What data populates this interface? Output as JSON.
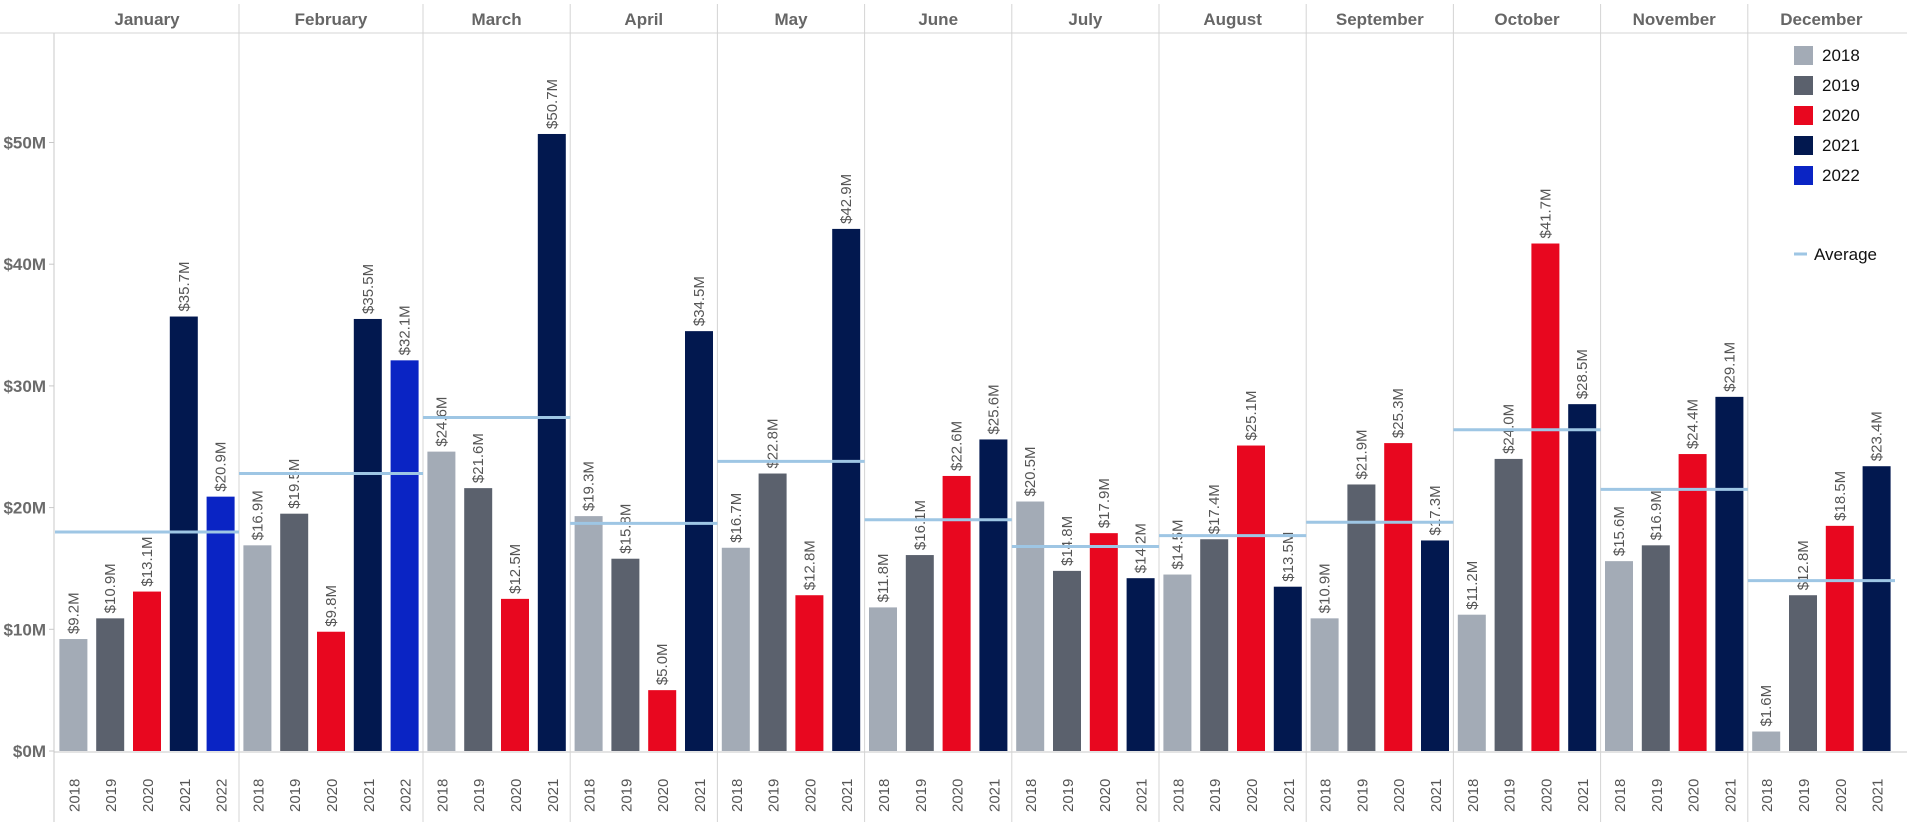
{
  "chart_data": {
    "type": "bar",
    "title": "",
    "xlabel": "",
    "ylabel": "",
    "ylim": [
      0,
      58
    ],
    "y_ticks": [
      {
        "value": 0,
        "label": "$0M"
      },
      {
        "value": 10,
        "label": "$10M"
      },
      {
        "value": 20,
        "label": "$20M"
      },
      {
        "value": 30,
        "label": "$30M"
      },
      {
        "value": 40,
        "label": "$40M"
      },
      {
        "value": 50,
        "label": "$50M"
      }
    ],
    "grid": false,
    "legend_position": "top-right",
    "legend": {
      "average_label": "Average",
      "items": [
        {
          "year": "2018",
          "color": "#a3abb6"
        },
        {
          "year": "2019",
          "color": "#5b616d"
        },
        {
          "year": "2020",
          "color": "#e8071f"
        },
        {
          "year": "2021",
          "color": "#02184f"
        },
        {
          "year": "2022",
          "color": "#0a24c4"
        }
      ]
    },
    "average_line_color": "#9ec6e4",
    "months": [
      {
        "name": "January",
        "average": 18.0,
        "bars": [
          {
            "year": "2018",
            "value": 9.2,
            "label": "$9.2M"
          },
          {
            "year": "2019",
            "value": 10.9,
            "label": "$10.9M"
          },
          {
            "year": "2020",
            "value": 13.1,
            "label": "$13.1M"
          },
          {
            "year": "2021",
            "value": 35.7,
            "label": "$35.7M"
          },
          {
            "year": "2022",
            "value": 20.9,
            "label": "$20.9M"
          }
        ]
      },
      {
        "name": "February",
        "average": 22.8,
        "bars": [
          {
            "year": "2018",
            "value": 16.9,
            "label": "$16.9M"
          },
          {
            "year": "2019",
            "value": 19.5,
            "label": "$19.5M"
          },
          {
            "year": "2020",
            "value": 9.8,
            "label": "$9.8M"
          },
          {
            "year": "2021",
            "value": 35.5,
            "label": "$35.5M"
          },
          {
            "year": "2022",
            "value": 32.1,
            "label": "$32.1M"
          }
        ]
      },
      {
        "name": "March",
        "average": 27.4,
        "bars": [
          {
            "year": "2018",
            "value": 24.6,
            "label": "$24.6M"
          },
          {
            "year": "2019",
            "value": 21.6,
            "label": "$21.6M"
          },
          {
            "year": "2020",
            "value": 12.5,
            "label": "$12.5M"
          },
          {
            "year": "2021",
            "value": 50.7,
            "label": "$50.7M"
          }
        ]
      },
      {
        "name": "April",
        "average": 18.7,
        "bars": [
          {
            "year": "2018",
            "value": 19.3,
            "label": "$19.3M"
          },
          {
            "year": "2019",
            "value": 15.8,
            "label": "$15.8M"
          },
          {
            "year": "2020",
            "value": 5.0,
            "label": "$5.0M"
          },
          {
            "year": "2021",
            "value": 34.5,
            "label": "$34.5M"
          }
        ]
      },
      {
        "name": "May",
        "average": 23.8,
        "bars": [
          {
            "year": "2018",
            "value": 16.7,
            "label": "$16.7M"
          },
          {
            "year": "2019",
            "value": 22.8,
            "label": "$22.8M"
          },
          {
            "year": "2020",
            "value": 12.8,
            "label": "$12.8M"
          },
          {
            "year": "2021",
            "value": 42.9,
            "label": "$42.9M"
          }
        ]
      },
      {
        "name": "June",
        "average": 19.0,
        "bars": [
          {
            "year": "2018",
            "value": 11.8,
            "label": "$11.8M"
          },
          {
            "year": "2019",
            "value": 16.1,
            "label": "$16.1M"
          },
          {
            "year": "2020",
            "value": 22.6,
            "label": "$22.6M"
          },
          {
            "year": "2021",
            "value": 25.6,
            "label": "$25.6M"
          }
        ]
      },
      {
        "name": "July",
        "average": 16.8,
        "bars": [
          {
            "year": "2018",
            "value": 20.5,
            "label": "$20.5M"
          },
          {
            "year": "2019",
            "value": 14.8,
            "label": "$14.8M"
          },
          {
            "year": "2020",
            "value": 17.9,
            "label": "$17.9M"
          },
          {
            "year": "2021",
            "value": 14.2,
            "label": "$14.2M"
          }
        ]
      },
      {
        "name": "August",
        "average": 17.7,
        "bars": [
          {
            "year": "2018",
            "value": 14.5,
            "label": "$14.5M"
          },
          {
            "year": "2019",
            "value": 17.4,
            "label": "$17.4M"
          },
          {
            "year": "2020",
            "value": 25.1,
            "label": "$25.1M"
          },
          {
            "year": "2021",
            "value": 13.5,
            "label": "$13.5M"
          }
        ]
      },
      {
        "name": "September",
        "average": 18.8,
        "bars": [
          {
            "year": "2018",
            "value": 10.9,
            "label": "$10.9M"
          },
          {
            "year": "2019",
            "value": 21.9,
            "label": "$21.9M"
          },
          {
            "year": "2020",
            "value": 25.3,
            "label": "$25.3M"
          },
          {
            "year": "2021",
            "value": 17.3,
            "label": "$17.3M"
          }
        ]
      },
      {
        "name": "October",
        "average": 26.4,
        "bars": [
          {
            "year": "2018",
            "value": 11.2,
            "label": "$11.2M"
          },
          {
            "year": "2019",
            "value": 24.0,
            "label": "$24.0M"
          },
          {
            "year": "2020",
            "value": 41.7,
            "label": "$41.7M"
          },
          {
            "year": "2021",
            "value": 28.5,
            "label": "$28.5M"
          }
        ]
      },
      {
        "name": "November",
        "average": 21.5,
        "bars": [
          {
            "year": "2018",
            "value": 15.6,
            "label": "$15.6M"
          },
          {
            "year": "2019",
            "value": 16.9,
            "label": "$16.9M"
          },
          {
            "year": "2020",
            "value": 24.4,
            "label": "$24.4M"
          },
          {
            "year": "2021",
            "value": 29.1,
            "label": "$29.1M"
          }
        ]
      },
      {
        "name": "December",
        "average": 14.0,
        "bars": [
          {
            "year": "2018",
            "value": 1.6,
            "label": "$1.6M"
          },
          {
            "year": "2019",
            "value": 12.8,
            "label": "$12.8M"
          },
          {
            "year": "2020",
            "value": 18.5,
            "label": "$18.5M"
          },
          {
            "year": "2021",
            "value": 23.4,
            "label": "$23.4M"
          }
        ]
      }
    ]
  }
}
